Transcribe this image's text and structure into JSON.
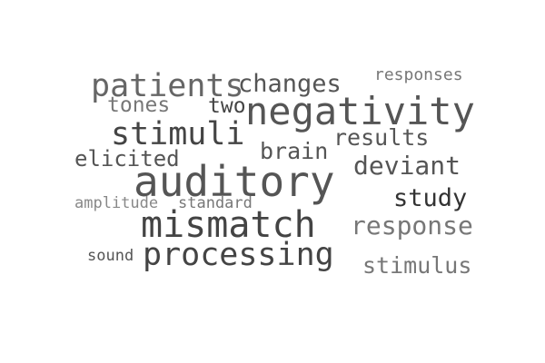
{
  "words": [
    {
      "text": "auditory",
      "color": "#555555"
    },
    {
      "text": "mismatch",
      "color": "#444444"
    },
    {
      "text": "negativity",
      "color": "#555555"
    },
    {
      "text": "processing",
      "color": "#444444"
    },
    {
      "text": "patients",
      "color": "#666666"
    },
    {
      "text": "stimuli",
      "color": "#444444"
    },
    {
      "text": "response",
      "color": "#777777"
    },
    {
      "text": "deviant",
      "color": "#555555"
    },
    {
      "text": "stimulus",
      "color": "#777777"
    },
    {
      "text": "study",
      "color": "#333333"
    },
    {
      "text": "changes",
      "color": "#555555"
    },
    {
      "text": "results",
      "color": "#555555"
    },
    {
      "text": "brain",
      "color": "#555555"
    },
    {
      "text": "elicited",
      "color": "#555555"
    },
    {
      "text": "tones",
      "color": "#777777"
    },
    {
      "text": "two",
      "color": "#444444"
    },
    {
      "text": "responses",
      "color": "#777777"
    },
    {
      "text": "amplitude",
      "color": "#888888"
    },
    {
      "text": "standard",
      "color": "#777777"
    },
    {
      "text": "sound",
      "color": "#555555"
    }
  ]
}
